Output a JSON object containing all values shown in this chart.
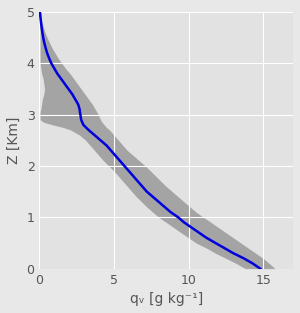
{
  "title": "",
  "xlabel": "qᵥ [g kg⁻¹]",
  "ylabel": "Z [Km]",
  "xlim": [
    0,
    17
  ],
  "ylim": [
    0,
    5
  ],
  "xticks": [
    0,
    5,
    10,
    15
  ],
  "yticks": [
    0,
    1,
    2,
    3,
    4,
    5
  ],
  "bg_color": "#e8e8e8",
  "plot_bg_color": "#e2e2e2",
  "grid_color": "#ffffff",
  "shade_color": "#909090",
  "shade_alpha": 0.75,
  "line_color": "#0000dd",
  "line_width": 1.8,
  "mean_z": [
    0.0,
    0.1,
    0.2,
    0.3,
    0.4,
    0.5,
    0.6,
    0.7,
    0.8,
    0.9,
    1.0,
    1.1,
    1.2,
    1.3,
    1.4,
    1.5,
    1.6,
    1.7,
    1.8,
    1.9,
    2.0,
    2.1,
    2.2,
    2.3,
    2.4,
    2.5,
    2.6,
    2.7,
    2.8,
    2.9,
    3.0,
    3.05,
    3.1,
    3.2,
    3.3,
    3.4,
    3.5,
    3.6,
    3.7,
    3.8,
    3.9,
    4.0,
    4.1,
    4.2,
    4.3,
    4.4,
    4.5,
    4.6,
    4.7,
    4.8,
    4.9,
    5.0
  ],
  "mean_qv": [
    14.8,
    14.3,
    13.7,
    13.0,
    12.4,
    11.8,
    11.2,
    10.7,
    10.2,
    9.7,
    9.3,
    8.8,
    8.4,
    8.0,
    7.6,
    7.2,
    6.9,
    6.6,
    6.3,
    6.0,
    5.7,
    5.4,
    5.1,
    4.8,
    4.5,
    4.1,
    3.7,
    3.3,
    2.95,
    2.8,
    2.75,
    2.72,
    2.7,
    2.6,
    2.4,
    2.2,
    1.95,
    1.7,
    1.45,
    1.2,
    1.0,
    0.8,
    0.65,
    0.52,
    0.42,
    0.33,
    0.26,
    0.2,
    0.15,
    0.11,
    0.07,
    0.04
  ],
  "shade_z": [
    0.0,
    0.1,
    0.2,
    0.3,
    0.4,
    0.5,
    0.6,
    0.7,
    0.8,
    0.9,
    1.0,
    1.1,
    1.2,
    1.3,
    1.4,
    1.5,
    1.6,
    1.7,
    1.8,
    1.9,
    2.0,
    2.1,
    2.2,
    2.3,
    2.4,
    2.5,
    2.6,
    2.7,
    2.75,
    2.8,
    2.85,
    2.9,
    3.0,
    3.05,
    3.1,
    3.2,
    3.3,
    3.4,
    3.5,
    3.6,
    3.7,
    3.8,
    3.9,
    4.0,
    4.1,
    4.2,
    4.3,
    4.4,
    4.5,
    4.6,
    4.7,
    4.8,
    4.9,
    5.0
  ],
  "shade_low": [
    13.8,
    13.2,
    12.5,
    11.8,
    11.2,
    10.5,
    10.0,
    9.5,
    9.0,
    8.5,
    8.0,
    7.6,
    7.2,
    6.85,
    6.5,
    6.2,
    5.9,
    5.6,
    5.3,
    5.0,
    4.65,
    4.3,
    4.0,
    3.7,
    3.4,
    3.1,
    2.7,
    2.1,
    1.6,
    0.9,
    0.3,
    0.05,
    0.05,
    0.05,
    0.1,
    0.15,
    0.2,
    0.3,
    0.35,
    0.3,
    0.25,
    0.15,
    0.1,
    0.05,
    0.05,
    0.05,
    0.05,
    0.05,
    0.05,
    0.05,
    0.05,
    0.05,
    0.05,
    0.05
  ],
  "shade_high": [
    15.8,
    15.4,
    15.0,
    14.5,
    14.0,
    13.5,
    13.0,
    12.5,
    12.0,
    11.5,
    11.0,
    10.5,
    10.1,
    9.7,
    9.3,
    8.9,
    8.5,
    8.15,
    7.8,
    7.45,
    7.1,
    6.7,
    6.3,
    5.9,
    5.6,
    5.3,
    5.0,
    4.7,
    4.5,
    4.35,
    4.2,
    4.1,
    3.95,
    3.85,
    3.75,
    3.55,
    3.3,
    3.05,
    2.8,
    2.55,
    2.3,
    2.05,
    1.75,
    1.5,
    1.25,
    1.05,
    0.85,
    0.68,
    0.52,
    0.38,
    0.27,
    0.18,
    0.12,
    0.08
  ]
}
